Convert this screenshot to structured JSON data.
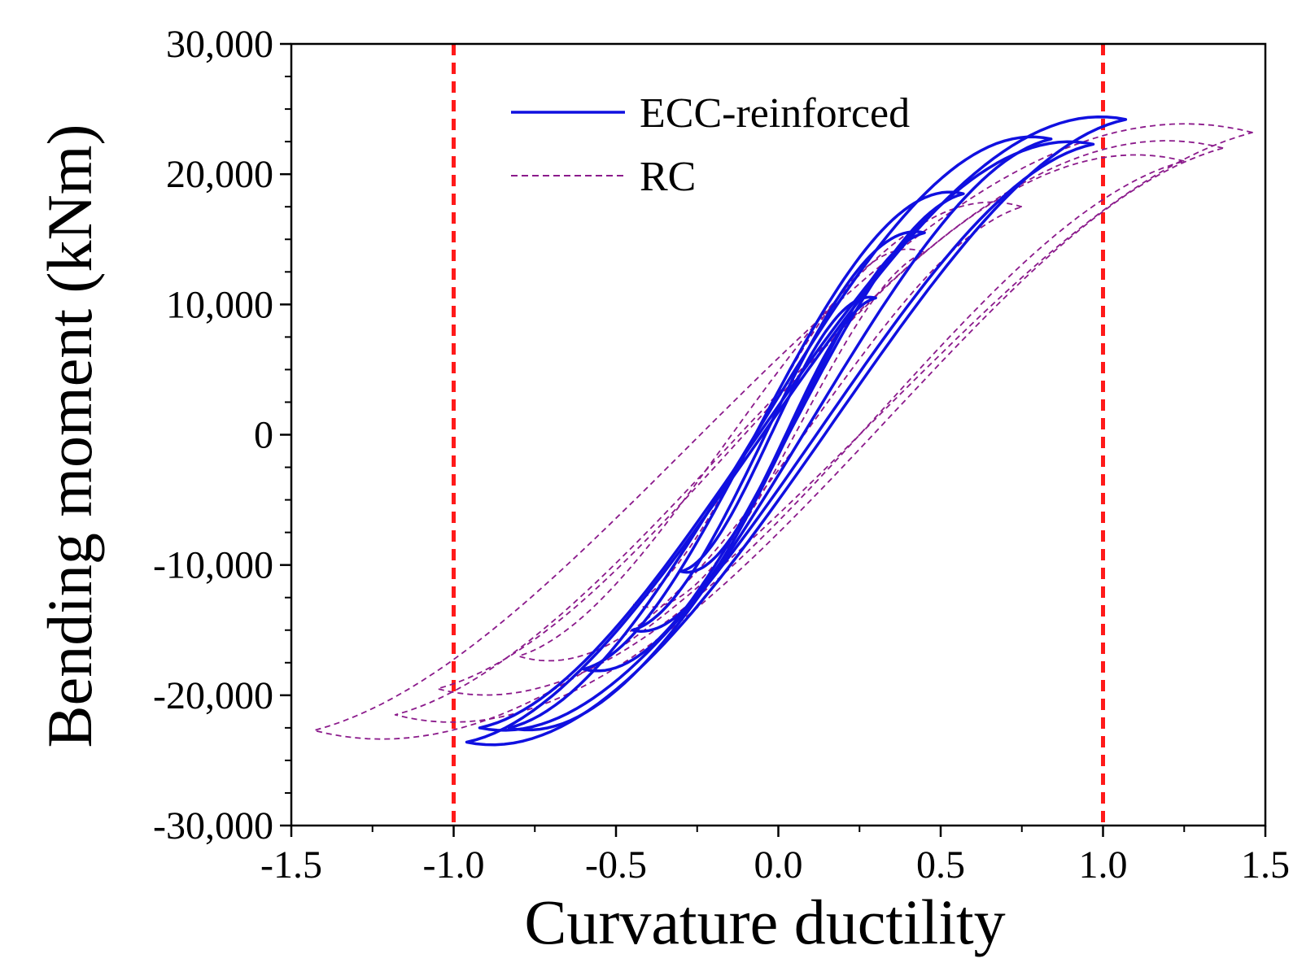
{
  "chart_data": {
    "type": "line",
    "title": "",
    "xlabel": "Curvature ductility",
    "ylabel": "Bending moment (kNm)",
    "xlim": [
      -1.5,
      1.5
    ],
    "ylim": [
      -30000,
      30000
    ],
    "x_ticks": [
      -1.5,
      -1.0,
      -0.5,
      0.0,
      0.5,
      1.0,
      1.5
    ],
    "x_tick_labels": [
      "-1.5",
      "-1.0",
      "-0.5",
      "0.0",
      "0.5",
      "1.0",
      "1.5"
    ],
    "y_ticks": [
      30000,
      20000,
      10000,
      0,
      -10000,
      -20000,
      -30000
    ],
    "y_tick_labels": [
      "30,000",
      "20,000",
      "10,000",
      "0",
      "-10,000",
      "-20,000",
      "-30,000"
    ],
    "grid": false,
    "legend_position": "top-center",
    "reference_lines": [
      {
        "x": -1.0,
        "color": "#ff1a1a",
        "style": "dashed"
      },
      {
        "x": 1.0,
        "color": "#ff1a1a",
        "style": "dashed"
      }
    ],
    "series": [
      {
        "name": "ECC-reinforced",
        "color": "#1010e0",
        "style": "solid",
        "cycles": [
          {
            "peak_pos": [
              0.3,
              10500
            ],
            "peak_neg": [
              -0.3,
              -10500
            ],
            "pinch": 2200,
            "width": 1200
          },
          {
            "peak_pos": [
              0.45,
              15500
            ],
            "peak_neg": [
              -0.45,
              -15000
            ],
            "pinch": 2200,
            "width": 1800
          },
          {
            "peak_pos": [
              0.57,
              18500
            ],
            "peak_neg": [
              -0.6,
              -18000
            ],
            "pinch": 2200,
            "width": 2400
          },
          {
            "peak_pos": [
              0.84,
              22700
            ],
            "peak_neg": [
              -0.83,
              -22500
            ],
            "pinch": 2200,
            "width": 3000
          },
          {
            "peak_pos": [
              0.97,
              22300
            ],
            "peak_neg": [
              -0.92,
              -22500
            ],
            "pinch": 2200,
            "width": 3200
          },
          {
            "peak_pos": [
              1.07,
              24200
            ],
            "peak_neg": [
              -0.96,
              -23600
            ],
            "pinch": 2200,
            "width": 3400
          }
        ]
      },
      {
        "name": "RC",
        "color": "#8b1a8b",
        "style": "dashed",
        "cycles": [
          {
            "peak_pos": [
              0.45,
              14000
            ],
            "peak_neg": [
              -0.45,
              -13000
            ],
            "pinch": 1500,
            "width": 2800
          },
          {
            "peak_pos": [
              0.75,
              17500
            ],
            "peak_neg": [
              -0.8,
              -17000
            ],
            "pinch": 1500,
            "width": 3800
          },
          {
            "peak_pos": [
              1.25,
              21000
            ],
            "peak_neg": [
              -1.05,
              -19500
            ],
            "pinch": 1500,
            "width": 4800
          },
          {
            "peak_pos": [
              1.37,
              22000
            ],
            "peak_neg": [
              -1.18,
              -21500
            ],
            "pinch": 1500,
            "width": 5400
          },
          {
            "peak_pos": [
              1.46,
              23200
            ],
            "peak_neg": [
              -1.43,
              -22700
            ],
            "pinch": 1500,
            "width": 6000
          }
        ]
      }
    ]
  }
}
